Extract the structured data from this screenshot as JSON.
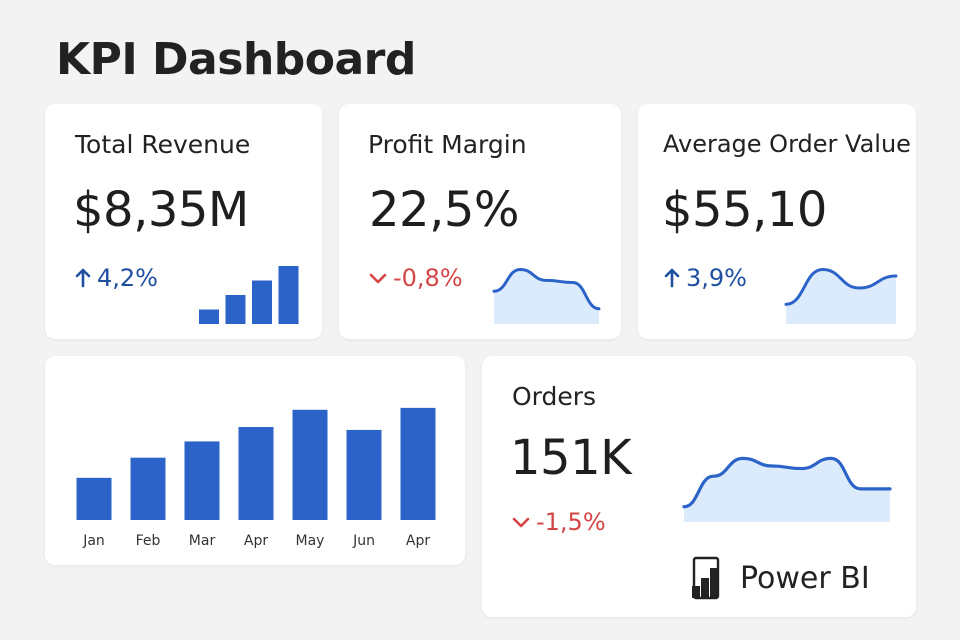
{
  "header": {
    "title": "KPI Dashboard"
  },
  "colors": {
    "accent": "#2b63c9",
    "area_fill": "#dcebfb",
    "up": "#1f4fa0",
    "down": "#d64545"
  },
  "cards": {
    "revenue": {
      "title": "Total Revenue",
      "value": "$8,35M",
      "delta": "4,2%",
      "direction": "up",
      "delta_icon": "arrow-up-icon",
      "spark": {
        "type": "bar",
        "values": [
          1,
          2,
          3,
          4
        ]
      }
    },
    "margin": {
      "title": "Profit Margin",
      "value": "22,5%",
      "delta": "-0,8%",
      "direction": "down",
      "delta_icon": "chevron-down-icon",
      "spark": {
        "type": "area",
        "values": [
          3,
          5,
          4,
          3.8,
          1.4
        ]
      }
    },
    "aov": {
      "title": "Average Order Value",
      "value": "$55,10",
      "delta": "3,9%",
      "direction": "up",
      "delta_icon": "arrow-up-icon",
      "spark": {
        "type": "area",
        "values": [
          1.8,
          5,
          3.3,
          4.4
        ]
      }
    },
    "orders": {
      "title": "Orders",
      "value": "151K",
      "delta": "-1,5%",
      "direction": "down",
      "delta_icon": "chevron-down-icon",
      "spark": {
        "type": "area",
        "values": [
          1.2,
          3.6,
          5,
          4.4,
          4.2,
          5,
          2.6,
          2.6
        ]
      }
    }
  },
  "chart_data": {
    "type": "bar",
    "categories": [
      "Jan",
      "Feb",
      "Mar",
      "Apr",
      "May",
      "Jun",
      "Apr"
    ],
    "values": [
      44,
      65,
      82,
      97,
      115,
      94,
      117
    ],
    "title": "",
    "xlabel": "",
    "ylabel": "",
    "ylim": [
      0,
      120
    ],
    "grid": false
  },
  "brand": {
    "logo_icon": "power-bi-logo-icon",
    "label": "Power BI"
  }
}
